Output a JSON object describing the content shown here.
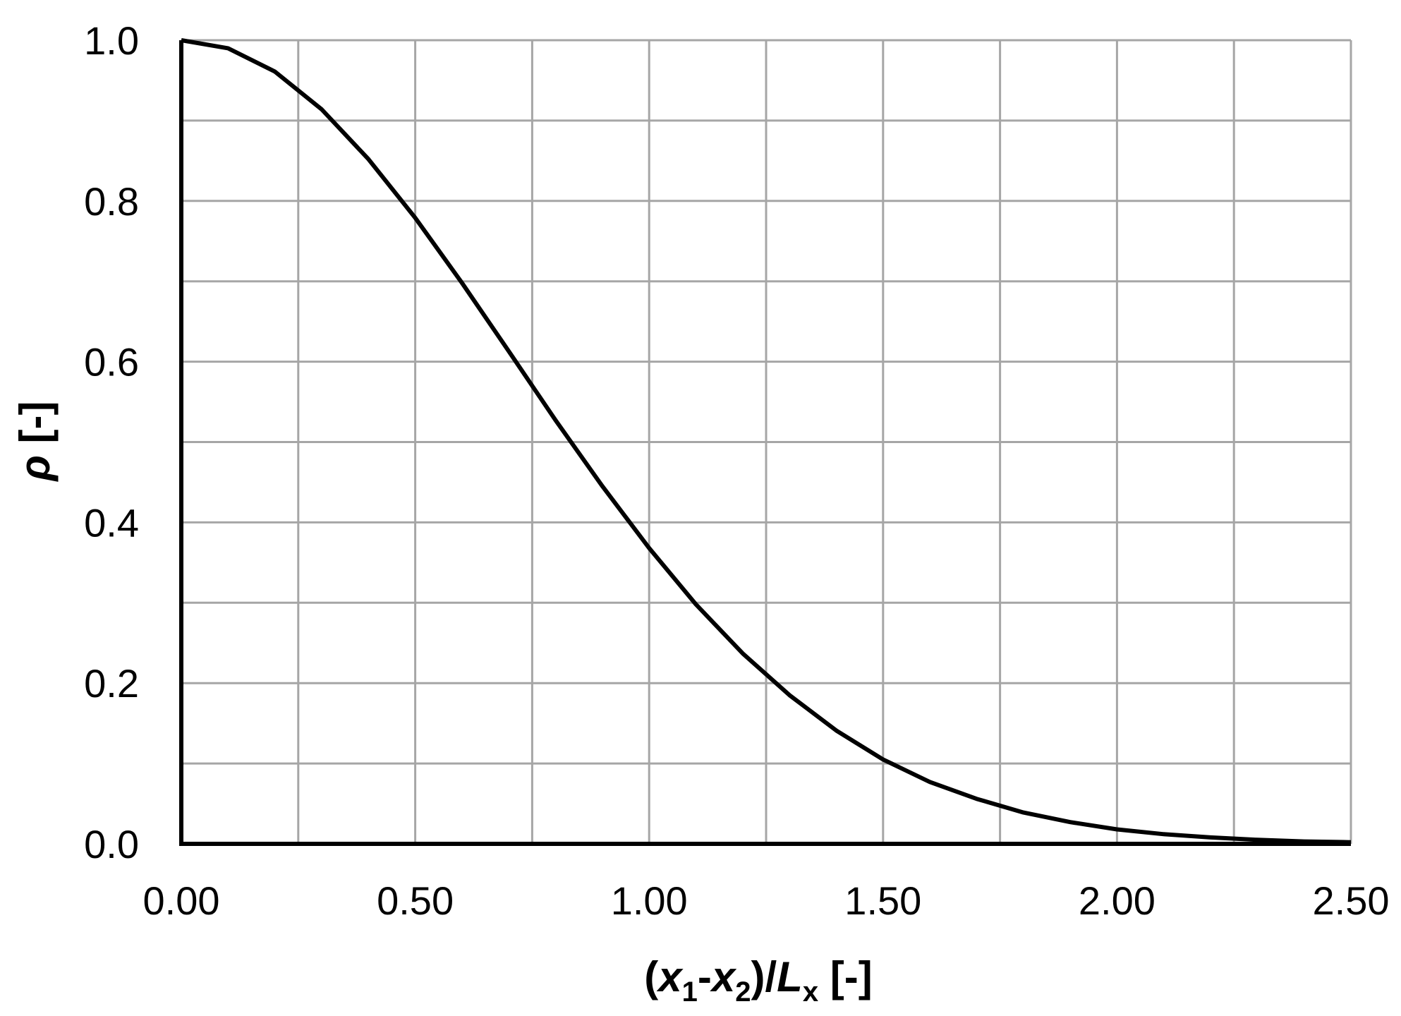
{
  "chart_data": {
    "type": "line",
    "title": "",
    "xlabel": "(x1-x2)/Lx [-]",
    "ylabel": "ρ [-]",
    "xlabel_parts": {
      "open": "(",
      "x1_var": "x",
      "x1_sub": "1",
      "minus": "-",
      "x2_var": "x",
      "x2_sub": "2",
      "close": ")/",
      "L_var": "L",
      "L_sub": "x",
      "unit": " [-]"
    },
    "ylabel_parts": {
      "var": "ρ",
      "unit": " [-]"
    },
    "xlim": [
      0,
      2.5
    ],
    "ylim": [
      0,
      1.0
    ],
    "x_tick_labels": [
      "0.00",
      "0.50",
      "1.00",
      "1.50",
      "2.00",
      "2.50"
    ],
    "y_tick_labels": [
      "0.0",
      "0.2",
      "0.4",
      "0.6",
      "0.8",
      "1.0"
    ],
    "grid": true,
    "series": [
      {
        "color": "#000000",
        "x": [
          0,
          0.1,
          0.2,
          0.3,
          0.4,
          0.5,
          0.6,
          0.7,
          0.8,
          0.9,
          1.0,
          1.1,
          1.2,
          1.3,
          1.4,
          1.5,
          1.6,
          1.7,
          1.8,
          1.9,
          2.0,
          2.1,
          2.2,
          2.3,
          2.4,
          2.5
        ],
        "y": [
          1.0,
          0.99,
          0.961,
          0.914,
          0.852,
          0.779,
          0.698,
          0.613,
          0.527,
          0.445,
          0.368,
          0.298,
          0.237,
          0.185,
          0.141,
          0.105,
          0.077,
          0.056,
          0.039,
          0.027,
          0.018,
          0.012,
          0.008,
          0.005,
          0.003,
          0.002
        ]
      }
    ]
  }
}
